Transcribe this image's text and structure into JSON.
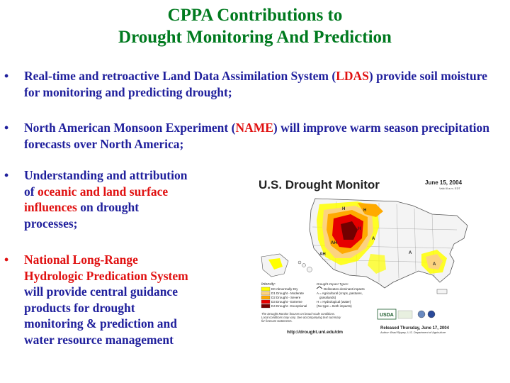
{
  "slide": {
    "title_line1": "CPPA Contributions to",
    "title_line2": "Drought Monitoring And Prediction"
  },
  "bullets": [
    {
      "pre": "Real-time and retroactive Land Data Assimilation System (",
      "red": "LDAS",
      "post": ") provide soil moisture for monitoring and predicting drought;"
    },
    {
      "pre": "North American Monsoon Experiment (",
      "red": "NAME",
      "post": ") will improve warm season precipitation forecasts over North America;"
    },
    {
      "l1": "Understanding and attribution",
      "l2_pre": "of ",
      "l2_red": "oceanic and land surface",
      "l3_red": "influences",
      "l3_post": " on drought",
      "l4": "processes;"
    },
    {
      "l1_red": "National Long-Range",
      "l2_red": "Hydrologic Predication System",
      "l3": "will provide central guidance",
      "l4": "products for drought",
      "l5": "monitoring & prediction and",
      "l6": "water resource management"
    }
  ],
  "bullet_glyph": "•",
  "drought_map": {
    "title": "U.S. Drought Monitor",
    "date": "June 15, 2004",
    "valid": "Valid 8 a.m. EDT",
    "legend_intensity_header": "Intensity:",
    "legend_intensity": [
      {
        "label": "D0 Abnormally Dry",
        "color": "#ffff00"
      },
      {
        "label": "D1 Drought - Moderate",
        "color": "#fcd37f"
      },
      {
        "label": "D2 Drought - Severe",
        "color": "#ffaa00"
      },
      {
        "label": "D3 Drought - Extreme",
        "color": "#e60000"
      },
      {
        "label": "D4 Drought - Exceptional",
        "color": "#730000"
      }
    ],
    "legend_impact_header": "Drought Impact Types:",
    "legend_impact": [
      "Delineates dominant impacts",
      "A = Agricultural (crops, pastures,",
      "grasslands)",
      "H = Hydrological (water)",
      "(No type = Both impacts)"
    ],
    "note_line1": "The Drought Monitor focuses on broad-scale conditions.",
    "note_line2": "Local conditions may vary. See accompanying text summary",
    "note_line3": "for forecast statements.",
    "url": "http://drought.unl.edu/dm",
    "released": "Released Thursday, June 17, 2004",
    "author": "Author: Brad Rippey, U.S. Department of Agriculture",
    "logo_usda": "USDA"
  }
}
